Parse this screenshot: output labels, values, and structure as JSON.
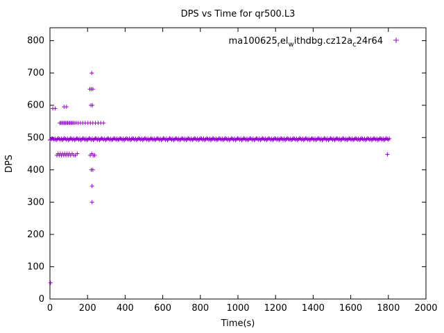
{
  "window": {
    "background": "#ffffff"
  },
  "chart_data": {
    "type": "scatter",
    "title": "DPS vs Time for qr500.L3",
    "xlabel": "Time(s)",
    "ylabel": "DPS",
    "xlim": [
      0,
      2000
    ],
    "ylim": [
      0,
      840
    ],
    "grid": false,
    "x_ticks": [
      0,
      200,
      400,
      600,
      800,
      1000,
      1200,
      1400,
      1600,
      1800,
      2000
    ],
    "y_ticks": [
      0,
      100,
      200,
      300,
      400,
      500,
      600,
      700,
      800
    ],
    "marker_color": "#9400d3",
    "axis_color": "#000000",
    "legend": {
      "position": "top-right-inside",
      "marker": "+",
      "series_label_plain": "ma100625_rel_withdbg.cz12a_c24r64",
      "label_segments": [
        {
          "text": "ma100625",
          "sub": false
        },
        {
          "text": "r",
          "sub": true
        },
        {
          "text": "el",
          "sub": false
        },
        {
          "text": "w",
          "sub": true
        },
        {
          "text": "ithdbg.cz12a",
          "sub": false
        },
        {
          "text": "c",
          "sub": true
        },
        {
          "text": "24r64",
          "sub": false
        }
      ]
    },
    "series": [
      {
        "name": "ma100625_rel_withdbg.cz12a_c24r64",
        "marker": "+",
        "color": "#9400d3",
        "band": {
          "description": "dense horizontal band of samples",
          "y": 495,
          "x_start": 0,
          "x_end": 1805,
          "points": 330,
          "y_jitter": [
            -3,
            0,
            3,
            1,
            -2,
            2
          ]
        },
        "outliers": [
          [
            3,
            50
          ],
          [
            15,
            590
          ],
          [
            28,
            590
          ],
          [
            75,
            595
          ],
          [
            88,
            595
          ],
          [
            52,
            545
          ],
          [
            58,
            545
          ],
          [
            64,
            545
          ],
          [
            70,
            545
          ],
          [
            76,
            545
          ],
          [
            82,
            545
          ],
          [
            88,
            545
          ],
          [
            94,
            545
          ],
          [
            100,
            545
          ],
          [
            106,
            545
          ],
          [
            112,
            545
          ],
          [
            118,
            545
          ],
          [
            124,
            545
          ],
          [
            132,
            545
          ],
          [
            140,
            545
          ],
          [
            150,
            545
          ],
          [
            162,
            545
          ],
          [
            175,
            545
          ],
          [
            188,
            545
          ],
          [
            202,
            545
          ],
          [
            215,
            545
          ],
          [
            228,
            545
          ],
          [
            242,
            545
          ],
          [
            256,
            545
          ],
          [
            270,
            545
          ],
          [
            285,
            545
          ],
          [
            37,
            445
          ],
          [
            43,
            450
          ],
          [
            49,
            445
          ],
          [
            55,
            450
          ],
          [
            61,
            445
          ],
          [
            67,
            450
          ],
          [
            73,
            445
          ],
          [
            79,
            450
          ],
          [
            85,
            445
          ],
          [
            91,
            450
          ],
          [
            97,
            445
          ],
          [
            103,
            450
          ],
          [
            110,
            445
          ],
          [
            118,
            450
          ],
          [
            126,
            445
          ],
          [
            135,
            445
          ],
          [
            145,
            450
          ],
          [
            214,
            445
          ],
          [
            222,
            450
          ],
          [
            230,
            445
          ],
          [
            238,
            445
          ],
          [
            222,
            700
          ],
          [
            212,
            650
          ],
          [
            220,
            650
          ],
          [
            228,
            650
          ],
          [
            218,
            600
          ],
          [
            226,
            600
          ],
          [
            220,
            400
          ],
          [
            228,
            400
          ],
          [
            224,
            350
          ],
          [
            224,
            300
          ],
          [
            1795,
            448
          ]
        ]
      }
    ]
  }
}
